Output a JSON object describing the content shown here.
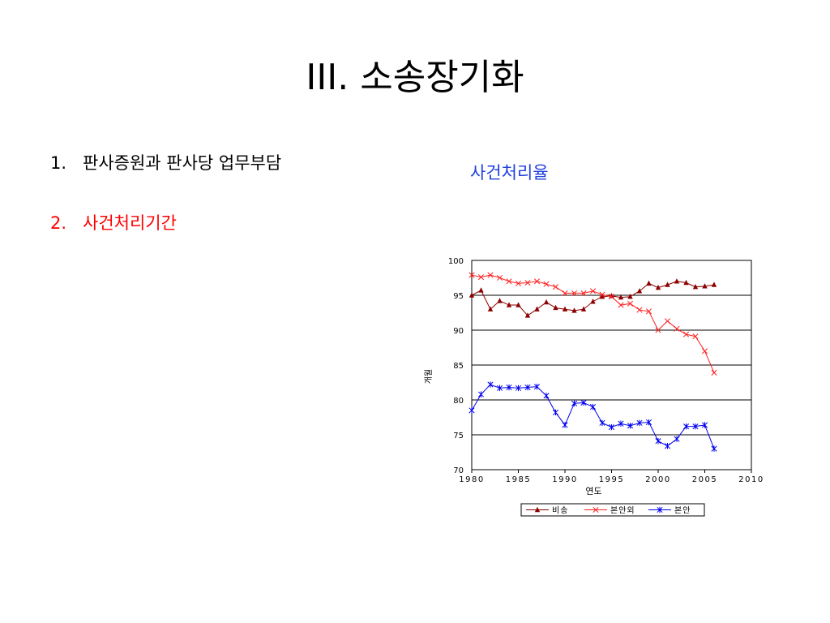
{
  "slide": {
    "title": "III. 소송장기화",
    "outline": [
      {
        "number": "1.",
        "label": "판사증원과 판사당 업무부담",
        "active": false
      },
      {
        "number": "2.",
        "label": "사건처리기간",
        "active": true
      }
    ],
    "chart_heading": "사건처리율"
  },
  "colors": {
    "active_item": "#ff0000",
    "heading": "#1f3fe0",
    "series": [
      "#8b0000",
      "#ff2020",
      "#0000ee"
    ]
  },
  "chart_data": {
    "type": "line",
    "title": "",
    "xlabel": "연도",
    "ylabel": "개월",
    "xlim": [
      1980,
      2010
    ],
    "ylim": [
      70,
      100
    ],
    "xticks": [
      1980,
      1985,
      1990,
      1995,
      2000,
      2005,
      2010
    ],
    "yticks": [
      70,
      75,
      80,
      85,
      90,
      95,
      100
    ],
    "grid": "horizontal",
    "legend_position": "bottom",
    "x": [
      1980,
      1981,
      1982,
      1983,
      1984,
      1985,
      1986,
      1987,
      1988,
      1989,
      1990,
      1991,
      1992,
      1993,
      1994,
      1995,
      1996,
      1997,
      1998,
      1999,
      2000,
      2001,
      2002,
      2003,
      2004,
      2005,
      2006
    ],
    "series": [
      {
        "name": "비송",
        "marker": "triangle",
        "values": [
          95.0,
          95.7,
          93.0,
          94.2,
          93.6,
          93.6,
          92.1,
          93.0,
          94.0,
          93.2,
          93.0,
          92.8,
          93.0,
          94.1,
          94.8,
          94.9,
          94.7,
          94.8,
          95.6,
          96.7,
          96.1,
          96.5,
          97.0,
          96.8,
          96.2,
          96.3,
          96.5
        ]
      },
      {
        "name": "본안외",
        "marker": "x",
        "values": [
          97.9,
          97.6,
          97.9,
          97.5,
          97.0,
          96.7,
          96.8,
          97.0,
          96.6,
          96.2,
          95.3,
          95.3,
          95.3,
          95.6,
          95.1,
          94.8,
          93.6,
          93.8,
          92.9,
          92.7,
          90.0,
          91.3,
          90.2,
          89.4,
          89.1,
          87.0,
          83.9
        ]
      },
      {
        "name": "본안",
        "marker": "star",
        "values": [
          78.5,
          80.8,
          82.2,
          81.7,
          81.8,
          81.7,
          81.8,
          81.9,
          80.6,
          78.2,
          76.4,
          79.5,
          79.6,
          79.0,
          76.7,
          76.1,
          76.6,
          76.3,
          76.7,
          76.8,
          74.1,
          73.4,
          74.4,
          76.2,
          76.2,
          76.4,
          73.0
        ]
      }
    ]
  }
}
